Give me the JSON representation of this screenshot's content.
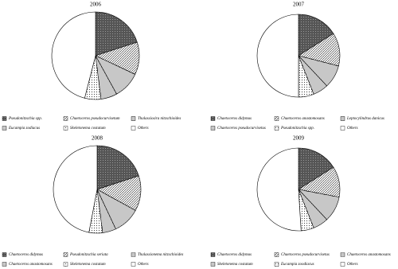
{
  "chart_data": [
    {
      "type": "pie",
      "title": "2006",
      "categories": [
        "Pseudonitzschia spp.",
        "Chaetoceros pseudocurvisetum",
        "Thalassiosira nitzschioides",
        "Eucampia zodiacus",
        "Skeletonema costatum",
        "Others"
      ],
      "values": [
        20,
        12,
        10,
        6,
        6,
        46
      ],
      "patterns": [
        "dark",
        "diag",
        "hlines",
        "vlines",
        "dots",
        "white"
      ]
    },
    {
      "type": "pie",
      "title": "2007",
      "categories": [
        "Chaetoceros didymus",
        "Chaetoceros anastomosans",
        "Leptocylindrus danicus",
        "Chaetoceros pseudocurvisetus",
        "Pseudonitzschia spp.",
        "Others"
      ],
      "values": [
        16,
        13,
        9,
        6,
        6,
        50
      ],
      "patterns": [
        "dark",
        "diag",
        "hlines",
        "vlines",
        "dots",
        "white"
      ]
    },
    {
      "type": "pie",
      "title": "2008",
      "categories": [
        "Chaetoceros didymus",
        "Pseudonitzschia seriata",
        "Thalassionema nitzschioides",
        "Chaetoceros anastomosans",
        "Skeletonema costatum",
        "Others"
      ],
      "values": [
        20,
        13,
        10,
        5,
        5,
        47
      ],
      "patterns": [
        "dark",
        "diag",
        "hlines",
        "vlines",
        "dots",
        "white"
      ]
    },
    {
      "type": "pie",
      "title": "2009",
      "categories": [
        "Chaetoceros didymus",
        "Chaetoceros pseudocurvisetus",
        "Chaetoceros anastomosans",
        "Skeletonema costatum",
        "Eucampia zoodiacus",
        "Others"
      ],
      "values": [
        16,
        12,
        10,
        6,
        5,
        51
      ],
      "patterns": [
        "dark",
        "diag",
        "hlines",
        "vlines",
        "dots",
        "white"
      ]
    }
  ]
}
